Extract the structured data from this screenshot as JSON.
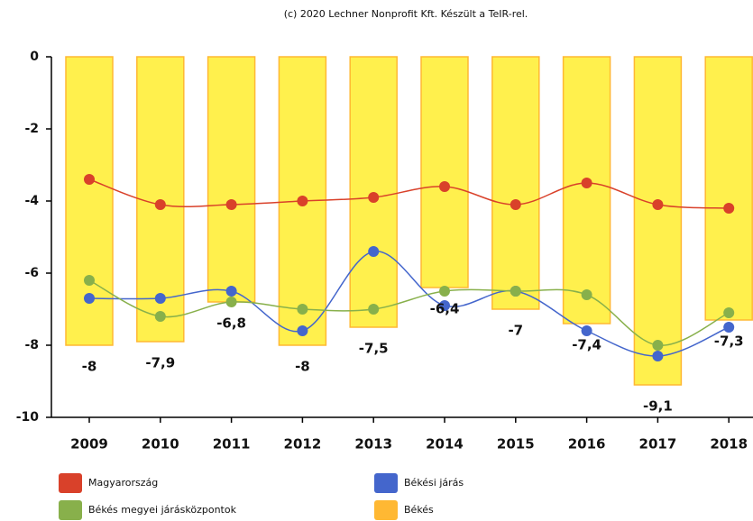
{
  "chart_data": {
    "type": "bar",
    "title": "(c) 2020 Lechner Nonprofit Kft. Készült a TeIR-rel.",
    "categories": [
      "2009",
      "2010",
      "2011",
      "2012",
      "2013",
      "2014",
      "2015",
      "2016",
      "2017",
      "2018"
    ],
    "ylim": [
      -10,
      0
    ],
    "yticks": [
      0,
      -2,
      -4,
      -6,
      -8,
      -10
    ],
    "series": [
      {
        "name": "Magyarország",
        "type": "line",
        "color": "#d9412a",
        "values": [
          -3.4,
          -4.1,
          -4.1,
          -4.0,
          -3.9,
          -3.6,
          -4.1,
          -3.5,
          -4.1,
          -4.2
        ]
      },
      {
        "name": "Békési járás",
        "type": "line",
        "color": "#4466cc",
        "values": [
          -6.7,
          -6.7,
          -6.5,
          -7.6,
          -5.4,
          -6.9,
          -6.5,
          -7.6,
          -8.3,
          -7.5
        ]
      },
      {
        "name": "Békés megyei járásközpontok",
        "type": "line",
        "color": "#88b04b",
        "values": [
          -6.2,
          -7.2,
          -6.8,
          -7.0,
          -7.0,
          -6.5,
          -6.5,
          -6.6,
          -8.0,
          -7.1
        ]
      },
      {
        "name": "Békés",
        "type": "bar",
        "color": "#ffb833",
        "fill": "#fff04d",
        "values": [
          -8,
          -7.9,
          -6.8,
          -8,
          -7.5,
          -6.4,
          -7,
          -7.4,
          -9.1,
          -7.3
        ],
        "value_labels": [
          "-8",
          "-7,9",
          "-6,8",
          "-8",
          "-7,5",
          "-6,4",
          "-7",
          "-7,4",
          "-9,1",
          "-7,3"
        ]
      }
    ]
  }
}
